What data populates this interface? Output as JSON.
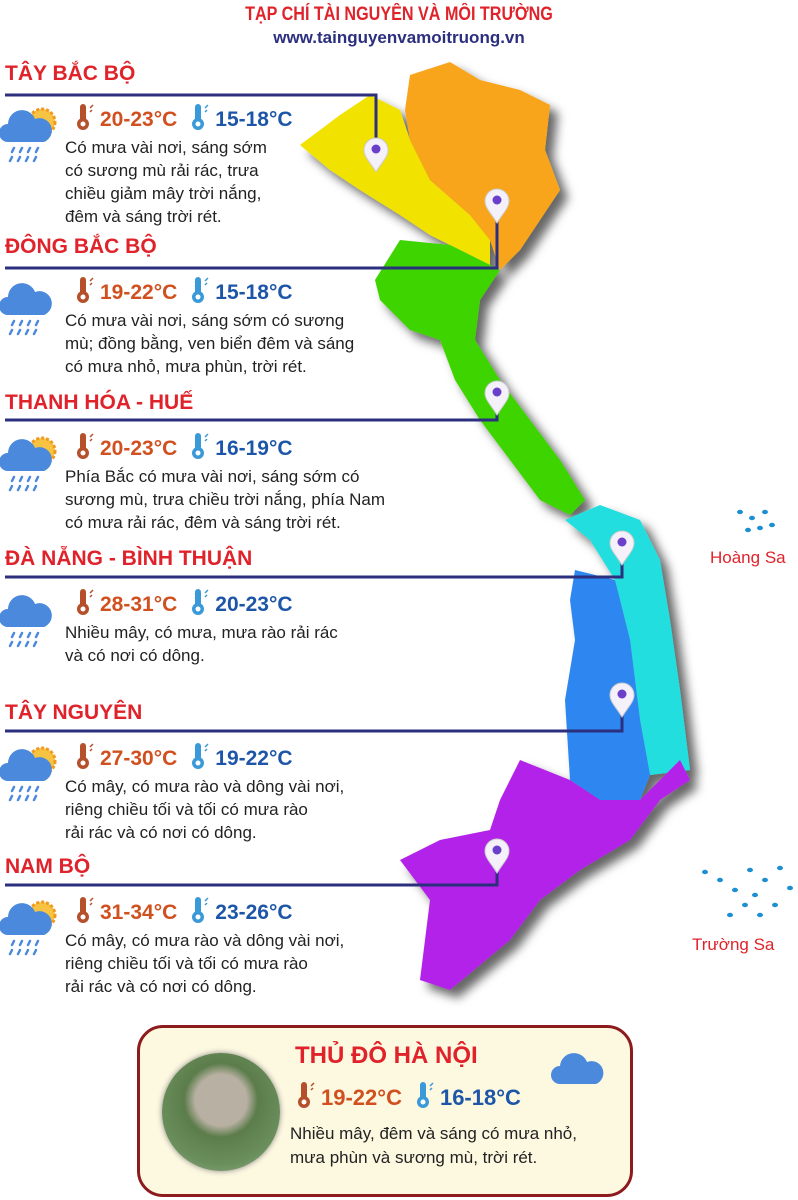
{
  "header": {
    "title": "TẠP CHÍ TÀI NGUYÊN VÀ MÔI TRƯỜNG",
    "website": "www.tainguyenvamoitruong.vn"
  },
  "colors": {
    "title_red": "#e0232b",
    "line_navy": "#2b2f7e",
    "hot": "#d0501f",
    "cold": "#1d56a8"
  },
  "regions": [
    {
      "name": "TÂY BẮC BỘ",
      "high": "20-23°C",
      "low": "15-18°C",
      "icon": "cloud-sun-rain-icon",
      "desc": [
        "Có mưa vài nơi, sáng sớm",
        "có sương mù rải rác, trưa",
        "chiều giảm mây trời nắng,",
        "đêm và sáng trời rét."
      ],
      "map_color": "#f2e200"
    },
    {
      "name": "ĐÔNG BẮC BỘ",
      "high": "19-22°C",
      "low": "15-18°C",
      "icon": "cloud-rain-icon",
      "desc": [
        "Có mưa vài nơi, sáng sớm có sương",
        "mù; đồng bằng, ven biển đêm và sáng",
        "có mưa nhỏ, mưa phùn, trời rét."
      ],
      "map_color": "#f9a51b"
    },
    {
      "name": "THANH HÓA - HUẾ",
      "high": "20-23°C",
      "low": "16-19°C",
      "icon": "cloud-sun-rain-icon",
      "desc": [
        "Phía Bắc có mưa vài nơi, sáng sớm có",
        "sương mù, trưa chiều trời nắng, phía Nam",
        "có mưa rải rác, đêm và sáng trời rét."
      ],
      "map_color": "#3ed400"
    },
    {
      "name": "ĐÀ NẴNG - BÌNH THUẬN",
      "high": "28-31°C",
      "low": "20-23°C",
      "icon": "cloud-rain-icon",
      "desc": [
        "Nhiều mây, có mưa, mưa rào rải rác",
        "và có nơi có dông."
      ],
      "map_color": "#22dede"
    },
    {
      "name": "TÂY NGUYÊN",
      "high": "27-30°C",
      "low": "19-22°C",
      "icon": "cloud-sun-rain-icon",
      "desc": [
        "Có mây, có mưa rào và dông vài nơi,",
        "riêng chiều tối và tối có mưa rào",
        "rải rác và có nơi có dông."
      ],
      "map_color": "#2f86f0"
    },
    {
      "name": "NAM BỘ",
      "high": "31-34°C",
      "low": "23-26°C",
      "icon": "cloud-sun-rain-icon",
      "desc": [
        "Có mây, có mưa rào và dông vài nơi,",
        "riêng chiều tối và tối có mưa rào",
        "rải rác và có nơi có dông."
      ],
      "map_color": "#b222e8"
    }
  ],
  "islands": {
    "hoang_sa": "Hoàng Sa",
    "truong_sa": "Trường Sa"
  },
  "hanoi": {
    "name": "THỦ ĐÔ HÀ NỘI",
    "high": "19-22°C",
    "low": "16-18°C",
    "icon": "cloud-icon",
    "desc": [
      "Nhiều mây, đêm và sáng có mưa nhỏ,",
      "mưa phùn và sương mù, trời rét."
    ]
  }
}
